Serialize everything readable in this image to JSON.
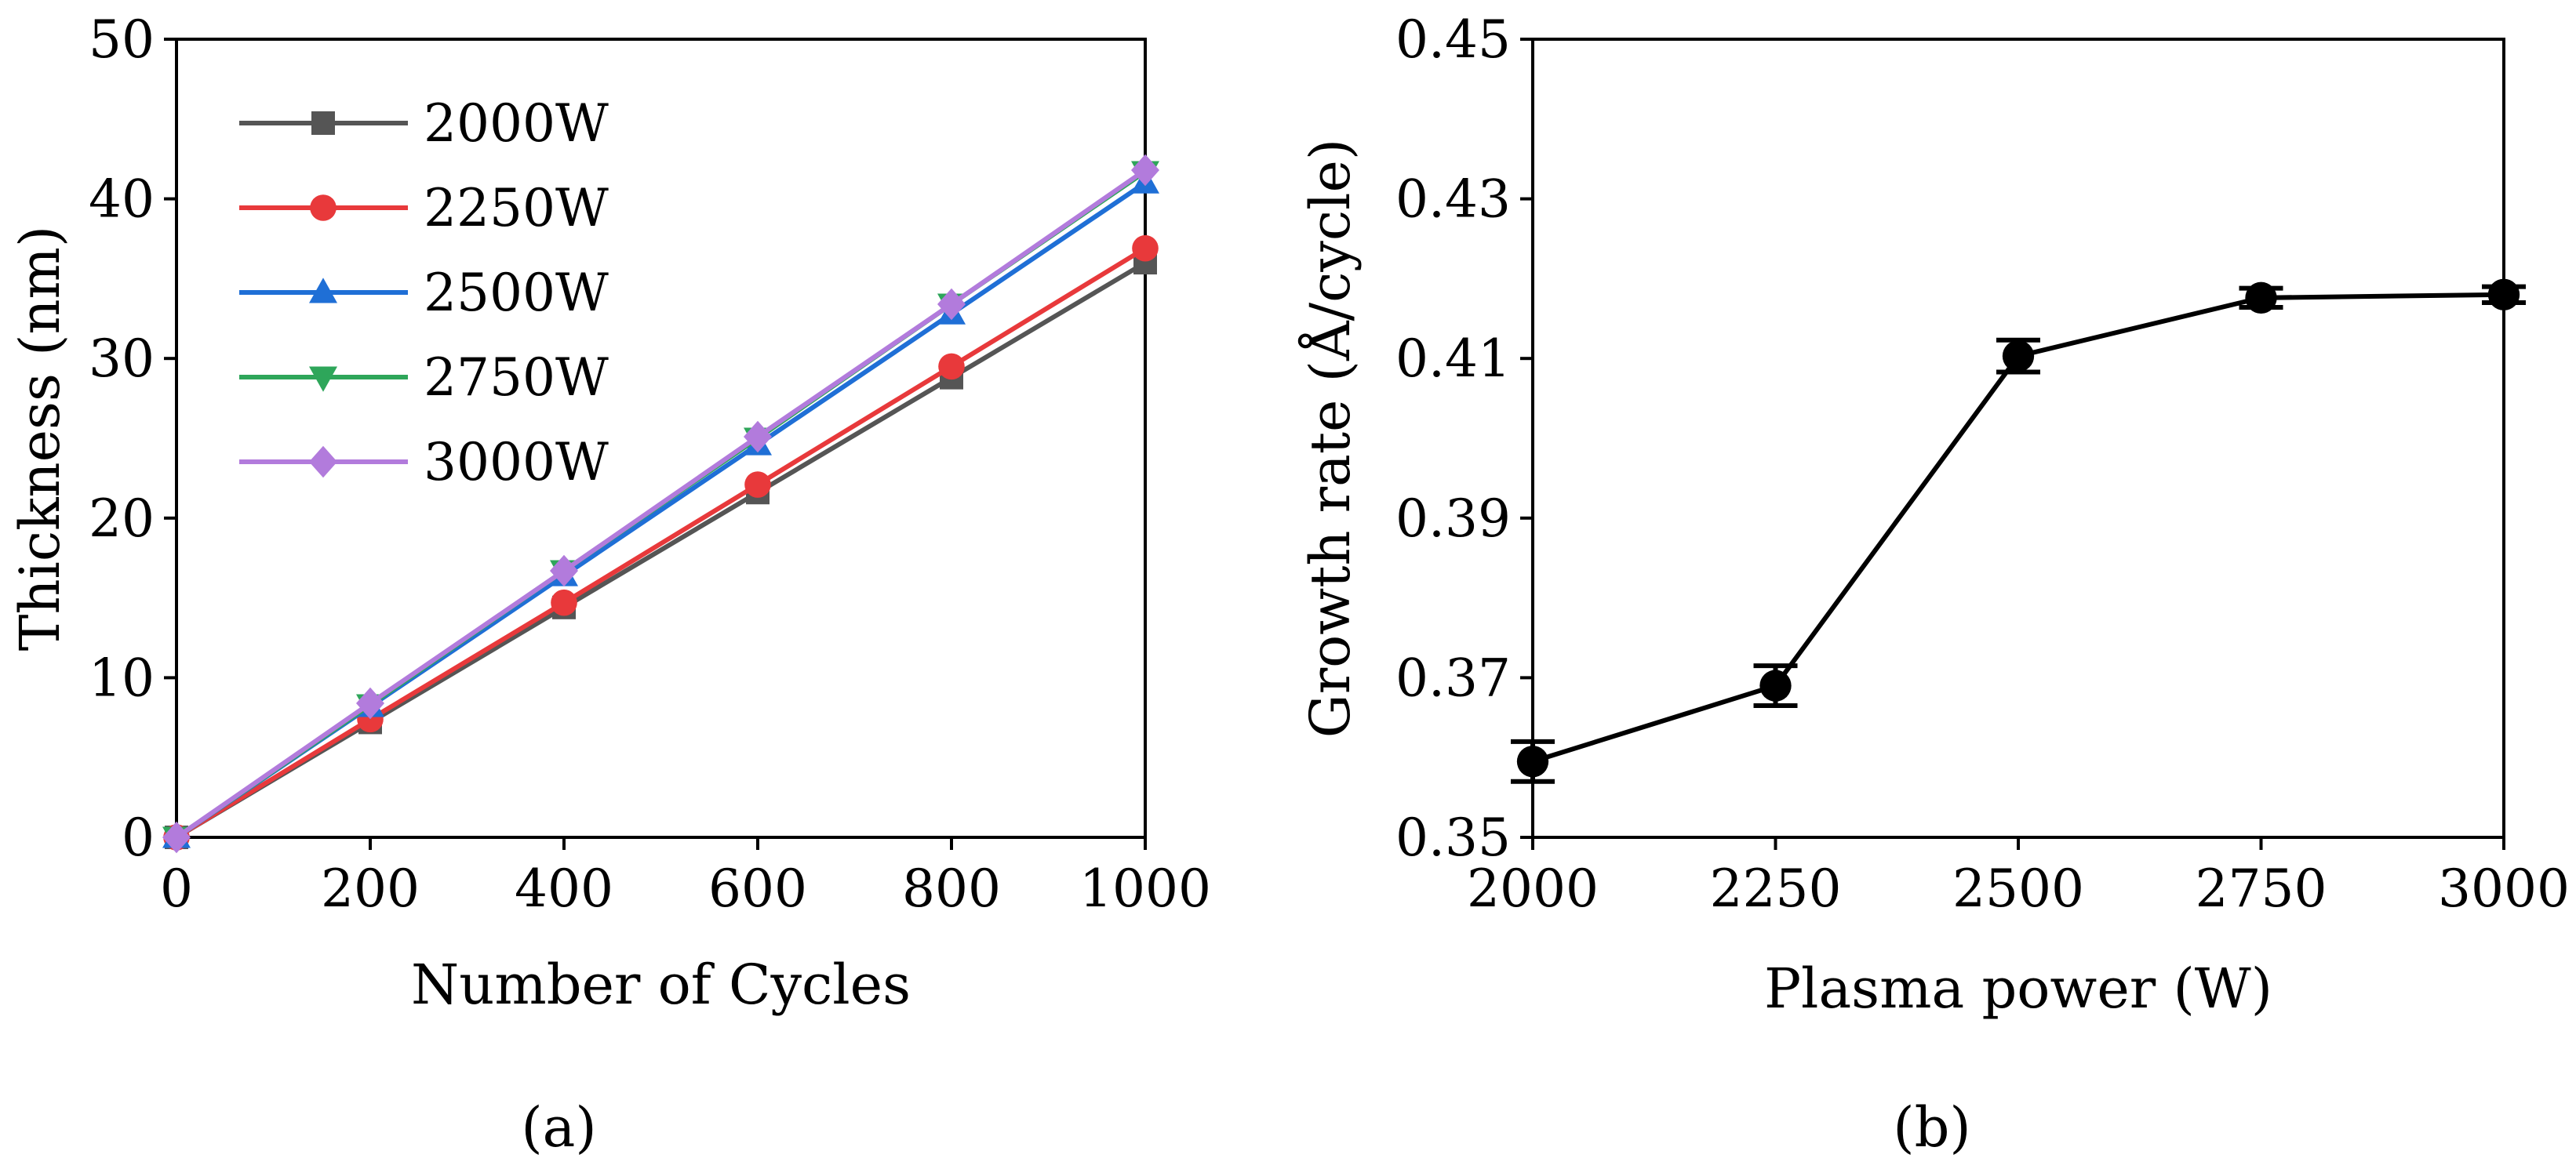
{
  "chart_data": [
    {
      "type": "line",
      "panel_label": "(a)",
      "xlabel": "Number of Cycles",
      "ylabel": "Thickness (nm)",
      "xlim": [
        0,
        1000
      ],
      "ylim": [
        0,
        50
      ],
      "xticks": [
        0,
        200,
        400,
        600,
        800,
        1000
      ],
      "yticks": [
        0,
        10,
        20,
        30,
        40,
        50
      ],
      "xtick_labels": [
        "0",
        "200",
        "400",
        "600",
        "800",
        "1000"
      ],
      "ytick_labels": [
        "0",
        "10",
        "20",
        "30",
        "40",
        "50"
      ],
      "legend_position": "top-left",
      "x": [
        0,
        200,
        400,
        600,
        800,
        1000
      ],
      "series": [
        {
          "name": "2000W",
          "color": "#555555",
          "marker": "square",
          "values": [
            0,
            7.2,
            14.4,
            21.6,
            28.8,
            36.0
          ]
        },
        {
          "name": "2250W",
          "color": "#e8393b",
          "marker": "circle",
          "values": [
            0,
            7.4,
            14.7,
            22.1,
            29.5,
            36.9
          ]
        },
        {
          "name": "2500W",
          "color": "#1f6fd6",
          "marker": "triangle-up",
          "values": [
            0,
            8.2,
            16.4,
            24.6,
            32.8,
            41.0
          ]
        },
        {
          "name": "2750W",
          "color": "#2ea65a",
          "marker": "triangle-down",
          "values": [
            0,
            8.3,
            16.7,
            25.0,
            33.4,
            41.7
          ]
        },
        {
          "name": "3000W",
          "color": "#b27bdc",
          "marker": "diamond",
          "values": [
            0,
            8.4,
            16.7,
            25.1,
            33.4,
            41.8
          ]
        }
      ]
    },
    {
      "type": "line",
      "panel_label": "(b)",
      "xlabel": "Plasma power (W)",
      "ylabel": "Growth rate  (Å/cycle)",
      "xlim": [
        2000,
        3000
      ],
      "ylim": [
        0.35,
        0.45
      ],
      "xticks": [
        2000,
        2250,
        2500,
        2750,
        3000
      ],
      "yticks": [
        0.35,
        0.37,
        0.39,
        0.41,
        0.43,
        0.45
      ],
      "xtick_labels": [
        "2000",
        "2250",
        "2500",
        "2750",
        "3000"
      ],
      "ytick_labels": [
        "0.35",
        "0.37",
        "0.39",
        "0.41",
        "0.43",
        "0.45"
      ],
      "x": [
        2000,
        2250,
        2500,
        2750,
        3000
      ],
      "series": [
        {
          "name": "Growth rate",
          "color": "#000000",
          "marker": "circle",
          "values": [
            0.3595,
            0.369,
            0.4103,
            0.4176,
            0.418
          ],
          "errors": [
            0.0025,
            0.0025,
            0.002,
            0.0012,
            0.001
          ]
        }
      ]
    }
  ]
}
